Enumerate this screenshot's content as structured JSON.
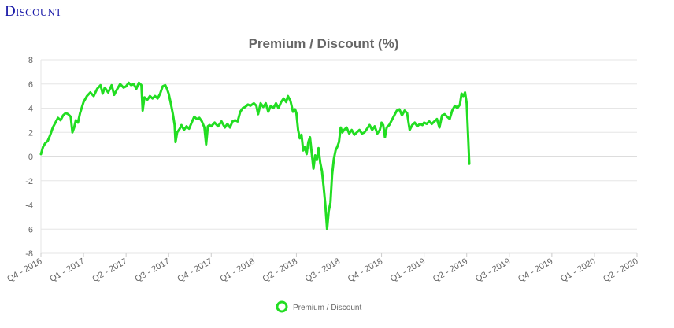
{
  "heading": "Discount",
  "chart_data": {
    "type": "line",
    "title": "Premium / Discount (%)",
    "xlabel": "",
    "ylabel": "",
    "ylim": [
      -8,
      8
    ],
    "yticks": [
      -8,
      -6,
      -4,
      -2,
      0,
      2,
      4,
      6,
      8
    ],
    "x_ticks": [
      "Q4 - 2016",
      "Q1 - 2017",
      "Q2 - 2017",
      "Q3 - 2017",
      "Q4 - 2017",
      "Q1 - 2018",
      "Q2 - 2018",
      "Q3 - 2018",
      "Q4 - 2018",
      "Q1 - 2019",
      "Q2 - 2019",
      "Q3 - 2019",
      "Q4 - 2019",
      "Q1 - 2020",
      "Q2 - 2020"
    ],
    "grid": true,
    "legend": "bottom",
    "color": "#22dd22",
    "series": [
      {
        "name": "Premium / Discount",
        "points": [
          [
            0.0,
            0.2
          ],
          [
            0.05,
            0.8
          ],
          [
            0.1,
            1.1
          ],
          [
            0.16,
            1.3
          ],
          [
            0.22,
            1.8
          ],
          [
            0.28,
            2.4
          ],
          [
            0.34,
            2.8
          ],
          [
            0.4,
            3.2
          ],
          [
            0.46,
            3.0
          ],
          [
            0.52,
            3.4
          ],
          [
            0.58,
            3.6
          ],
          [
            0.64,
            3.5
          ],
          [
            0.7,
            3.3
          ],
          [
            0.74,
            2.0
          ],
          [
            0.78,
            2.4
          ],
          [
            0.82,
            3.0
          ],
          [
            0.87,
            2.8
          ],
          [
            0.92,
            3.6
          ],
          [
            1.0,
            4.5
          ],
          [
            1.08,
            5.0
          ],
          [
            1.16,
            5.3
          ],
          [
            1.24,
            5.0
          ],
          [
            1.32,
            5.6
          ],
          [
            1.4,
            5.9
          ],
          [
            1.45,
            5.2
          ],
          [
            1.5,
            5.7
          ],
          [
            1.58,
            5.3
          ],
          [
            1.66,
            5.9
          ],
          [
            1.72,
            5.1
          ],
          [
            1.78,
            5.5
          ],
          [
            1.86,
            6.0
          ],
          [
            1.94,
            5.7
          ],
          [
            2.0,
            5.8
          ],
          [
            2.06,
            6.1
          ],
          [
            2.12,
            5.9
          ],
          [
            2.18,
            6.0
          ],
          [
            2.24,
            5.6
          ],
          [
            2.3,
            6.1
          ],
          [
            2.36,
            5.9
          ],
          [
            2.39,
            3.8
          ],
          [
            2.43,
            4.9
          ],
          [
            2.5,
            4.7
          ],
          [
            2.56,
            5.0
          ],
          [
            2.62,
            4.8
          ],
          [
            2.68,
            5.0
          ],
          [
            2.74,
            4.8
          ],
          [
            2.8,
            5.2
          ],
          [
            2.86,
            5.8
          ],
          [
            2.92,
            5.9
          ],
          [
            2.96,
            5.6
          ],
          [
            3.0,
            5.2
          ],
          [
            3.05,
            4.4
          ],
          [
            3.1,
            3.5
          ],
          [
            3.14,
            2.6
          ],
          [
            3.16,
            1.2
          ],
          [
            3.2,
            2.0
          ],
          [
            3.26,
            2.3
          ],
          [
            3.3,
            2.6
          ],
          [
            3.36,
            2.2
          ],
          [
            3.42,
            2.5
          ],
          [
            3.48,
            2.3
          ],
          [
            3.54,
            2.8
          ],
          [
            3.6,
            3.3
          ],
          [
            3.66,
            3.1
          ],
          [
            3.72,
            3.2
          ],
          [
            3.78,
            2.9
          ],
          [
            3.84,
            2.4
          ],
          [
            3.88,
            1.0
          ],
          [
            3.92,
            2.5
          ],
          [
            3.96,
            2.6
          ],
          [
            4.0,
            2.5
          ],
          [
            4.08,
            2.8
          ],
          [
            4.16,
            2.5
          ],
          [
            4.24,
            2.9
          ],
          [
            4.32,
            2.4
          ],
          [
            4.38,
            2.7
          ],
          [
            4.44,
            2.4
          ],
          [
            4.5,
            2.9
          ],
          [
            4.56,
            3.0
          ],
          [
            4.62,
            2.9
          ],
          [
            4.68,
            3.7
          ],
          [
            4.74,
            4.0
          ],
          [
            4.8,
            4.1
          ],
          [
            4.86,
            4.3
          ],
          [
            4.92,
            4.2
          ],
          [
            5.0,
            4.4
          ],
          [
            5.06,
            4.2
          ],
          [
            5.1,
            3.5
          ],
          [
            5.16,
            4.4
          ],
          [
            5.22,
            4.1
          ],
          [
            5.28,
            4.4
          ],
          [
            5.34,
            3.7
          ],
          [
            5.4,
            4.2
          ],
          [
            5.46,
            4.0
          ],
          [
            5.52,
            4.4
          ],
          [
            5.58,
            4.0
          ],
          [
            5.64,
            4.5
          ],
          [
            5.7,
            4.8
          ],
          [
            5.76,
            4.5
          ],
          [
            5.8,
            5.0
          ],
          [
            5.86,
            4.6
          ],
          [
            5.92,
            3.7
          ],
          [
            5.97,
            3.9
          ],
          [
            6.0,
            3.6
          ],
          [
            6.04,
            2.2
          ],
          [
            6.08,
            1.5
          ],
          [
            6.12,
            1.8
          ],
          [
            6.16,
            0.5
          ],
          [
            6.2,
            0.8
          ],
          [
            6.24,
            0.2
          ],
          [
            6.28,
            1.2
          ],
          [
            6.32,
            1.6
          ],
          [
            6.36,
            0.3
          ],
          [
            6.4,
            -1.0
          ],
          [
            6.44,
            0.1
          ],
          [
            6.48,
            -0.3
          ],
          [
            6.52,
            0.7
          ],
          [
            6.56,
            -0.5
          ],
          [
            6.6,
            -1.2
          ],
          [
            6.64,
            -2.5
          ],
          [
            6.68,
            -4.0
          ],
          [
            6.72,
            -6.0
          ],
          [
            6.76,
            -4.5
          ],
          [
            6.8,
            -3.8
          ],
          [
            6.84,
            -1.5
          ],
          [
            6.88,
            -0.2
          ],
          [
            6.92,
            0.5
          ],
          [
            6.96,
            0.8
          ],
          [
            7.0,
            1.2
          ],
          [
            7.04,
            2.4
          ],
          [
            7.08,
            2.0
          ],
          [
            7.12,
            2.2
          ],
          [
            7.18,
            2.4
          ],
          [
            7.24,
            1.9
          ],
          [
            7.3,
            2.2
          ],
          [
            7.36,
            1.8
          ],
          [
            7.42,
            2.0
          ],
          [
            7.48,
            2.2
          ],
          [
            7.54,
            1.9
          ],
          [
            7.6,
            2.0
          ],
          [
            7.66,
            2.3
          ],
          [
            7.72,
            2.6
          ],
          [
            7.78,
            2.2
          ],
          [
            7.84,
            2.5
          ],
          [
            7.9,
            1.9
          ],
          [
            7.96,
            2.2
          ],
          [
            8.0,
            2.8
          ],
          [
            8.04,
            2.6
          ],
          [
            8.08,
            1.6
          ],
          [
            8.12,
            2.4
          ],
          [
            8.18,
            2.6
          ],
          [
            8.24,
            3.0
          ],
          [
            8.3,
            3.4
          ],
          [
            8.36,
            3.8
          ],
          [
            8.42,
            3.9
          ],
          [
            8.48,
            3.4
          ],
          [
            8.54,
            3.8
          ],
          [
            8.6,
            3.6
          ],
          [
            8.66,
            2.2
          ],
          [
            8.72,
            2.6
          ],
          [
            8.78,
            2.8
          ],
          [
            8.84,
            2.5
          ],
          [
            8.9,
            2.7
          ],
          [
            8.96,
            2.6
          ],
          [
            9.0,
            2.8
          ],
          [
            9.06,
            2.7
          ],
          [
            9.12,
            2.9
          ],
          [
            9.18,
            2.7
          ],
          [
            9.24,
            2.9
          ],
          [
            9.3,
            3.1
          ],
          [
            9.36,
            2.4
          ],
          [
            9.42,
            3.4
          ],
          [
            9.48,
            3.5
          ],
          [
            9.54,
            3.3
          ],
          [
            9.6,
            3.1
          ],
          [
            9.66,
            3.8
          ],
          [
            9.72,
            4.2
          ],
          [
            9.78,
            4.0
          ],
          [
            9.84,
            4.3
          ],
          [
            9.88,
            5.2
          ],
          [
            9.92,
            5.0
          ],
          [
            9.96,
            5.3
          ],
          [
            10.0,
            4.4
          ],
          [
            10.03,
            2.0
          ],
          [
            10.06,
            -0.6
          ]
        ]
      }
    ]
  }
}
